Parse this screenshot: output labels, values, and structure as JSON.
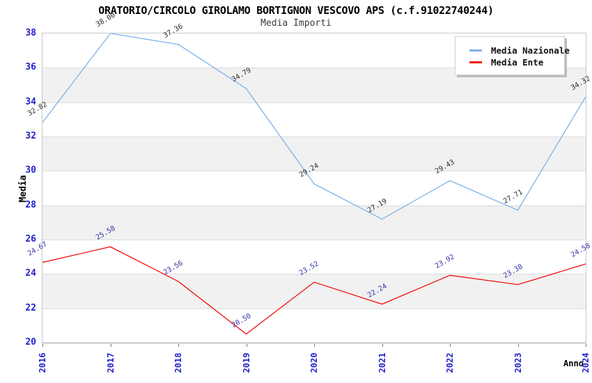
{
  "header": {
    "title": "ORATORIO/CIRCOLO GIROLAMO BORTIGNON VESCOVO APS (c.f.91022740244)",
    "subtitle": "Media Importi"
  },
  "axes": {
    "ylabel": "Media",
    "xlabel": "Anno",
    "tick_color": "#2222cc"
  },
  "legend": {
    "position": "top-right",
    "items": [
      {
        "label": "Media Nazionale",
        "color": "#7fb2e6"
      },
      {
        "label": "Media Ente",
        "color": "#ee1111"
      }
    ]
  },
  "colors": {
    "band_gray": "#f1f1f1",
    "gridline": "#dcdcdc",
    "plot_border": "#c9c9c9",
    "national_series_label": "#2b2b2b",
    "ente_series_label": "#3333aa"
  },
  "chart_data": {
    "type": "line",
    "title": "ORATORIO/CIRCOLO GIROLAMO BORTIGNON VESCOVO APS (c.f.91022740244)",
    "subtitle": "Media Importi",
    "xlabel": "Anno",
    "ylabel": "Media",
    "x": [
      "2016",
      "2017",
      "2018",
      "2019",
      "2020",
      "2021",
      "2022",
      "2023",
      "2024"
    ],
    "series": [
      {
        "name": "Media Nazionale",
        "color": "#7fb2e6",
        "label_color": "#2b2b2b",
        "values": [
          32.82,
          38.0,
          37.36,
          34.79,
          29.24,
          27.19,
          29.43,
          27.71,
          34.32
        ]
      },
      {
        "name": "Media Ente",
        "color": "#ee1111",
        "label_color": "#3333aa",
        "values": [
          24.67,
          25.58,
          23.56,
          20.5,
          23.52,
          22.24,
          23.92,
          23.38,
          24.58
        ]
      }
    ],
    "ylim": [
      20,
      38
    ],
    "yticks": [
      38,
      36,
      34,
      32,
      30,
      28,
      26,
      24,
      22,
      20
    ],
    "grid": "horizontal, alternating gray bands every 2 units",
    "legend_position": "top-right",
    "point_labels": "values shown rotated -30deg at each point"
  }
}
